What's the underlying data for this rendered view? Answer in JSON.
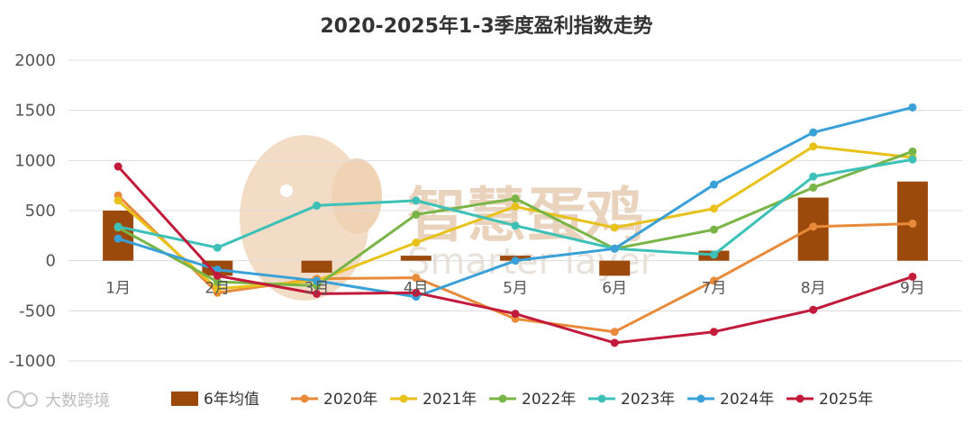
{
  "chart_data": {
    "type": "bar+line",
    "title": "2020-2025年1-3季度盈利指数走势",
    "categories": [
      "1月",
      "2月",
      "3月",
      "4月",
      "5月",
      "6月",
      "7月",
      "8月",
      "9月"
    ],
    "ylim": [
      -1000,
      2000
    ],
    "yticks": [
      -1000,
      -500,
      0,
      500,
      1000,
      1500,
      2000
    ],
    "grid": true,
    "legend_position": "bottom",
    "bar_series": {
      "name": "6年均值",
      "color": "#9c4a0c",
      "values": [
        500,
        -150,
        -120,
        50,
        50,
        -150,
        100,
        630,
        790
      ]
    },
    "series": [
      {
        "name": "2020年",
        "color": "#e88a3a",
        "values": [
          650,
          -320,
          -180,
          -170,
          -580,
          -710,
          -200,
          340,
          370
        ]
      },
      {
        "name": "2021年",
        "color": "#e8c21a",
        "values": [
          600,
          -280,
          -200,
          180,
          540,
          330,
          520,
          1140,
          1030
        ]
      },
      {
        "name": "2022年",
        "color": "#78b446",
        "values": [
          330,
          -210,
          -250,
          460,
          620,
          120,
          310,
          730,
          1090
        ]
      },
      {
        "name": "2023年",
        "color": "#3cc0b8",
        "values": [
          340,
          130,
          550,
          600,
          350,
          120,
          60,
          840,
          1010
        ]
      },
      {
        "name": "2024年",
        "color": "#3aa0d8",
        "values": [
          220,
          -90,
          -200,
          -360,
          0,
          120,
          760,
          1280,
          1530
        ]
      },
      {
        "name": "2025年",
        "color": "#c21a3a",
        "values": [
          940,
          -150,
          -330,
          -320,
          -530,
          -820,
          -710,
          -490,
          -160
        ]
      }
    ]
  },
  "watermark": {
    "cn": "智慧蛋鸡",
    "en": "Smarter layer"
  },
  "source_label": "大数跨境"
}
